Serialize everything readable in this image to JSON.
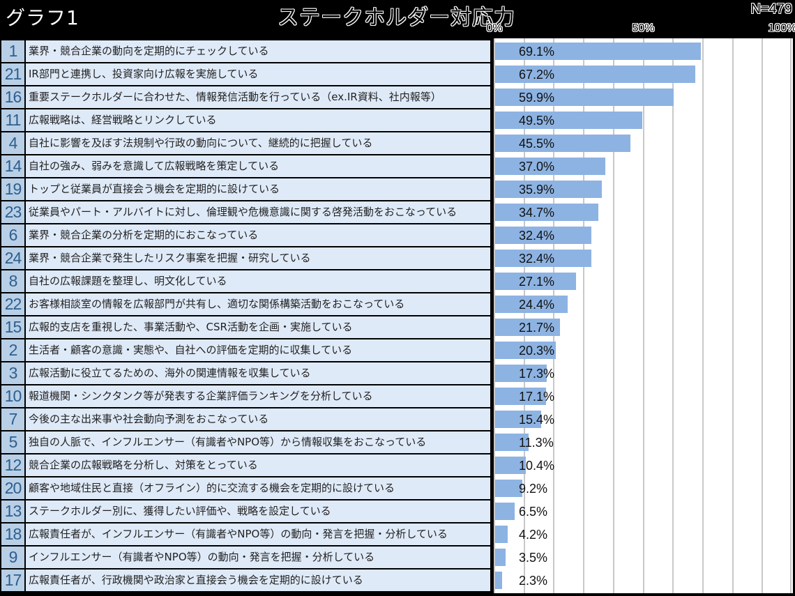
{
  "header": {
    "graph_label": "グラフ1",
    "title": "ステークホルダー対応力",
    "sample_size": "N=479"
  },
  "axis": {
    "ticks": [
      {
        "label": "0%",
        "value": 0
      },
      {
        "label": "50%",
        "value": 50
      },
      {
        "label": "100%",
        "value": 100
      }
    ]
  },
  "colors": {
    "bar": "#8db3e2",
    "label_bg": "#dfeaf8",
    "number_bg": "#b8cfe6",
    "number_text": "#2e5e8e",
    "gridline": "#c8c8c8",
    "background": "#000000"
  },
  "rows": [
    {
      "num": "1",
      "label": "業界・競合企業の動向を定期的にチェックしている",
      "value": 69.1,
      "value_label": "69.1%"
    },
    {
      "num": "21",
      "label": "IR部門と連携し、投資家向け広報を実施している",
      "value": 67.2,
      "value_label": "67.2%"
    },
    {
      "num": "16",
      "label": "重要ステークホルダーに合わせた、情報発信活動を行っている（ex.IR資料、社内報等）",
      "value": 59.9,
      "value_label": "59.9%"
    },
    {
      "num": "11",
      "label": "広報戦略は、経営戦略とリンクしている",
      "value": 49.5,
      "value_label": "49.5%"
    },
    {
      "num": "4",
      "label": "自社に影響を及ぼす法規制や行政の動向について、継続的に把握している",
      "value": 45.5,
      "value_label": "45.5%"
    },
    {
      "num": "14",
      "label": "自社の強み、弱みを意識して広報戦略を策定している",
      "value": 37.0,
      "value_label": "37.0%"
    },
    {
      "num": "19",
      "label": "トップと従業員が直接会う機会を定期的に設けている",
      "value": 35.9,
      "value_label": "35.9%"
    },
    {
      "num": "23",
      "label": "従業員やパート・アルバイトに対し、倫理観や危機意識に関する啓発活動をおこなっている",
      "value": 34.7,
      "value_label": "34.7%"
    },
    {
      "num": "6",
      "label": "業界・競合企業の分析を定期的におこなっている",
      "value": 32.4,
      "value_label": "32.4%"
    },
    {
      "num": "24",
      "label": "業界・競合企業で発生したリスク事案を把握・研究している",
      "value": 32.4,
      "value_label": "32.4%"
    },
    {
      "num": "8",
      "label": "自社の広報課題を整理し、明文化している",
      "value": 27.1,
      "value_label": "27.1%"
    },
    {
      "num": "22",
      "label": "お客様相談室の情報を広報部門が共有し、適切な関係構築活動をおこなっている",
      "value": 24.4,
      "value_label": "24.4%"
    },
    {
      "num": "15",
      "label": "広報的支店を重視した、事業活動や、CSR活動を企画・実施している",
      "value": 21.7,
      "value_label": "21.7%"
    },
    {
      "num": "2",
      "label": "生活者・顧客の意識・実態や、自社への評価を定期的に収集している",
      "value": 20.3,
      "value_label": "20.3%"
    },
    {
      "num": "3",
      "label": "広報活動に役立てるための、海外の関連情報を収集している",
      "value": 17.3,
      "value_label": "17.3%"
    },
    {
      "num": "10",
      "label": "報道機関・シンクタンク等が発表する企業評価ランキングを分析している",
      "value": 17.1,
      "value_label": "17.1%"
    },
    {
      "num": "7",
      "label": "今後の主な出来事や社会動向予測をおこなっている",
      "value": 15.4,
      "value_label": "15.4%"
    },
    {
      "num": "5",
      "label": "独自の人脈で、インフルエンサー（有識者やNPO等）から情報収集をおこなっている",
      "value": 11.3,
      "value_label": "11.3%"
    },
    {
      "num": "12",
      "label": "競合企業の広報戦略を分析し、対策をとっている",
      "value": 10.4,
      "value_label": "10.4%"
    },
    {
      "num": "20",
      "label": "顧客や地域住民と直接（オフライン）的に交流する機会を定期的に設けている",
      "value": 9.2,
      "value_label": "9.2%"
    },
    {
      "num": "13",
      "label": "ステークホルダー別に、獲得したい評価や、戦略を設定している",
      "value": 6.5,
      "value_label": "6.5%"
    },
    {
      "num": "18",
      "label": "広報責任者が、インフルエンサー（有識者やNPO等）の動向・発言を把握・分析している",
      "value": 4.2,
      "value_label": "4.2%"
    },
    {
      "num": "9",
      "label": "インフルエンサー（有識者やNPO等）の動向・発言を把握・分析している",
      "value": 3.5,
      "value_label": "3.5%"
    },
    {
      "num": "17",
      "label": "広報責任者が、行政機関や政治家と直接会う機会を定期的に設けている",
      "value": 2.3,
      "value_label": "2.3%"
    }
  ],
  "chart_data": {
    "type": "bar",
    "orientation": "horizontal",
    "title": "ステークホルダー対応力",
    "subtitle": "グラフ1",
    "annotation": "N=479",
    "xlabel": "",
    "ylabel": "",
    "xlim": [
      0,
      100
    ],
    "x_ticks": [
      "0%",
      "50%",
      "100%"
    ],
    "grid": true,
    "grid_step": 10,
    "legend": null,
    "categories": [
      "1 業界・競合企業の動向を定期的にチェックしている",
      "21 IR部門と連携し、投資家向け広報を実施している",
      "16 重要ステークホルダーに合わせた、情報発信活動を行っている（ex.IR資料、社内報等）",
      "11 広報戦略は、経営戦略とリンクしている",
      "4 自社に影響を及ぼす法規制や行政の動向について、継続的に把握している",
      "14 自社の強み、弱みを意識して広報戦略を策定している",
      "19 トップと従業員が直接会う機会を定期的に設けている",
      "23 従業員やパート・アルバイトに対し、倫理観や危機意識に関する啓発活動をおこなっている",
      "6 業界・競合企業の分析を定期的におこなっている",
      "24 業界・競合企業で発生したリスク事案を把握・研究している",
      "8 自社の広報課題を整理し、明文化している",
      "22 お客様相談室の情報を広報部門が共有し、適切な関係構築活動をおこなっている",
      "15 広報的支店を重視した、事業活動や、CSR活動を企画・実施している",
      "2 生活者・顧客の意識・実態や、自社への評価を定期的に収集している",
      "3 広報活動に役立てるための、海外の関連情報を収集している",
      "10 報道機関・シンクタンク等が発表する企業評価ランキングを分析している",
      "7 今後の主な出来事や社会動向予測をおこなっている",
      "5 独自の人脈で、インフルエンサー（有識者やNPO等）から情報収集をおこなっている",
      "12 競合企業の広報戦略を分析し、対策をとっている",
      "20 顧客や地域住民と直接（オフライン）的に交流する機会を定期的に設けている",
      "13 ステークホルダー別に、獲得したい評価や、戦略を設定している",
      "18 広報責任者が、インフルエンサー（有識者やNPO等）の動向・発言を把握・分析している",
      "9 インフルエンサー（有識者やNPO等）の動向・発言を把握・分析している",
      "17 広報責任者が、行政機関や政治家と直接会う機会を定期的に設けている"
    ],
    "values": [
      69.1,
      67.2,
      59.9,
      49.5,
      45.5,
      37.0,
      35.9,
      34.7,
      32.4,
      32.4,
      27.1,
      24.4,
      21.7,
      20.3,
      17.3,
      17.1,
      15.4,
      11.3,
      10.4,
      9.2,
      6.5,
      4.2,
      3.5,
      2.3
    ],
    "unit": "%"
  }
}
